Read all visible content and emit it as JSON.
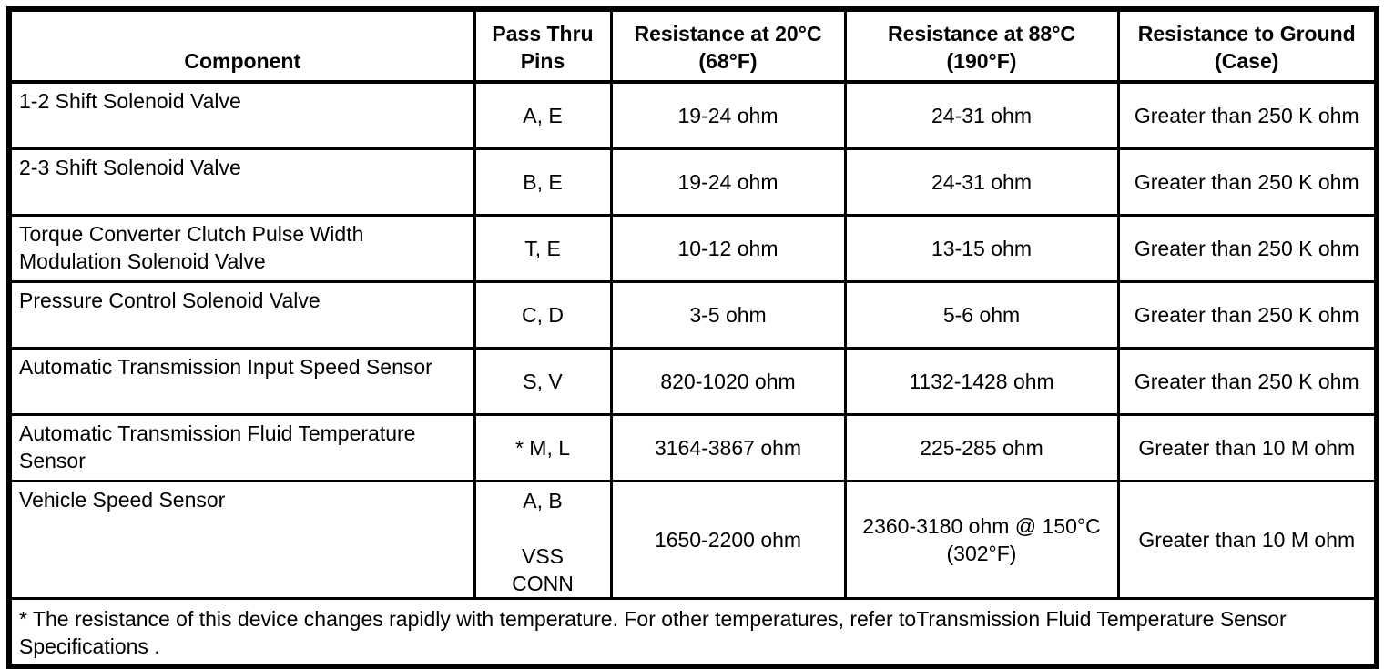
{
  "colors": {
    "background": "#ffffff",
    "border": "#000000",
    "text": "#000000"
  },
  "table": {
    "columns": [
      {
        "line1": "Component",
        "line2": ""
      },
      {
        "line1": "Pass Thru",
        "line2": "Pins"
      },
      {
        "line1": "Resistance at 20°C",
        "line2": "(68°F)"
      },
      {
        "line1": "Resistance at 88°C",
        "line2": "(190°F)"
      },
      {
        "line1": "Resistance to Ground",
        "line2": "(Case)"
      }
    ],
    "rows": [
      {
        "component": "1-2 Shift Solenoid Valve",
        "pins": "A, E",
        "r20": "19-24 ohm",
        "r88": "24-31 ohm",
        "ground": "Greater than 250 K ohm"
      },
      {
        "component": "2-3 Shift Solenoid Valve",
        "pins": "B, E",
        "r20": "19-24 ohm",
        "r88": "24-31 ohm",
        "ground": "Greater than 250 K ohm"
      },
      {
        "component": "Torque Converter Clutch Pulse Width Modulation Solenoid Valve",
        "pins": "T, E",
        "r20": "10-12 ohm",
        "r88": "13-15 ohm",
        "ground": "Greater than 250 K ohm"
      },
      {
        "component": "Pressure Control Solenoid Valve",
        "pins": "C, D",
        "r20": "3-5 ohm",
        "r88": "5-6 ohm",
        "ground": "Greater than 250 K ohm"
      },
      {
        "component": "Automatic Transmission Input Speed Sensor",
        "pins": "S, V",
        "r20": "820-1020 ohm",
        "r88": "1132-1428 ohm",
        "ground": "Greater than 250 K ohm"
      },
      {
        "component": "Automatic Transmission Fluid Temperature Sensor",
        "pins": "* M, L",
        "r20": "3164-3867 ohm",
        "r88": "225-285 ohm",
        "ground": "Greater than 10 M ohm"
      },
      {
        "component": "Vehicle Speed Sensor",
        "pins_line1": "A, B",
        "pins_line2": "VSS CONN",
        "r20": "1650-2200 ohm",
        "r88": "2360-3180 ohm @ 150°C (302°F)",
        "ground": "Greater than 10 M ohm"
      }
    ],
    "footnote": "* The resistance of this device changes rapidly with temperature. For other temperatures, refer toTransmission Fluid Temperature Sensor Specifications ."
  }
}
